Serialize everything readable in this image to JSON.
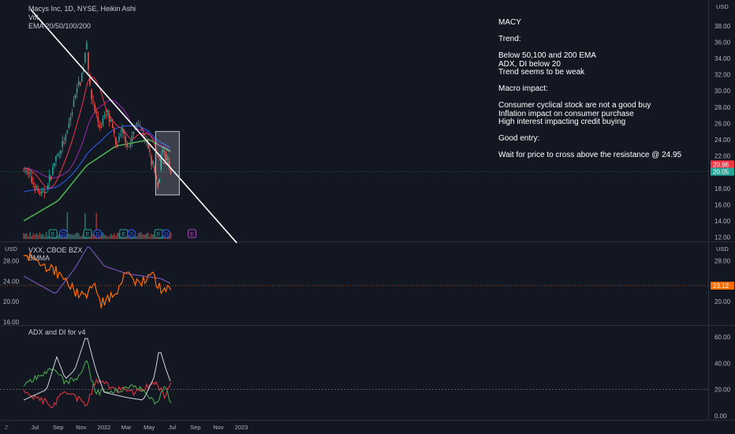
{
  "header": {
    "title": "Macys Inc, 1D, NYSE, Heikin Ashi",
    "vol": "Vol",
    "ema": "EMA 20/50/100/200",
    "vxx_label": "VXX, CBOE BZX",
    "smma_label": "SMMA",
    "adx_label": "ADX and DI for v4"
  },
  "annotation": {
    "ticker": "MACY",
    "trend_title": "Trend:",
    "trend_lines": [
      "Below 50,100 and 200 EMA",
      "ADX, DI below 20",
      "Trend seems to be weak"
    ],
    "macro_title": "Macro impact:",
    "macro_lines": [
      "Consumer cyclical stock are not a good buy",
      "Inflation impact on consumer purchase",
      "High interest impacting credit buying"
    ],
    "entry_title": "Good entry:",
    "entry_line": "Wait for price to cross above the resistance @ 24.95"
  },
  "colors": {
    "background": "#131722",
    "up_candle": "#26a69a",
    "down_candle": "#ef5350",
    "ema20": "#f23645",
    "ema50": "#9c27b0",
    "ema100": "#2962ff",
    "ema200": "#4caf50",
    "trendline": "#ffffff",
    "vxx": "#ff6d00",
    "smma": "#7e57c2",
    "adx": "#d1d4dc",
    "di_plus": "#4caf50",
    "di_minus": "#f23645"
  },
  "chart_data": [
    {
      "type": "candlestick",
      "name": "Macys Inc price",
      "unit": "USD",
      "y_ticks": [
        "38.00",
        "36.00",
        "34.00",
        "32.00",
        "30.00",
        "28.00",
        "26.00",
        "24.00",
        "22.00",
        "20.00",
        "18.00",
        "16.00",
        "14.00",
        "12.00"
      ],
      "ylim": [
        11.5,
        39.5
      ],
      "x_ticks": [
        "Jul",
        "Sep",
        "Nov",
        "2022",
        "Mar",
        "May",
        "Jul",
        "Sep",
        "Nov",
        "2023"
      ],
      "price_path": [
        {
          "date": "2021-06-01",
          "price": 20.5
        },
        {
          "date": "2021-06-20",
          "price": 19.2
        },
        {
          "date": "2021-07-20",
          "price": 17.0
        },
        {
          "date": "2021-08-05",
          "price": 18.5
        },
        {
          "date": "2021-08-25",
          "price": 21.5
        },
        {
          "date": "2021-09-20",
          "price": 24.0
        },
        {
          "date": "2021-10-01",
          "price": 26.0
        },
        {
          "date": "2021-10-20",
          "price": 30.5
        },
        {
          "date": "2021-11-05",
          "price": 32.0
        },
        {
          "date": "2021-11-15",
          "price": 36.5
        },
        {
          "date": "2021-11-25",
          "price": 30.0
        },
        {
          "date": "2021-12-20",
          "price": 25.5
        },
        {
          "date": "2022-01-10",
          "price": 27.5
        },
        {
          "date": "2022-02-01",
          "price": 23.5
        },
        {
          "date": "2022-02-20",
          "price": 25.0
        },
        {
          "date": "2022-03-10",
          "price": 23.0
        },
        {
          "date": "2022-03-30",
          "price": 26.5
        },
        {
          "date": "2022-04-20",
          "price": 24.0
        },
        {
          "date": "2022-05-10",
          "price": 21.0
        },
        {
          "date": "2022-05-25",
          "price": 17.5
        },
        {
          "date": "2022-06-05",
          "price": 23.5
        },
        {
          "date": "2022-06-15",
          "price": 22.0
        },
        {
          "date": "2022-06-28",
          "price": 19.5
        }
      ],
      "ema200_path": [
        {
          "date": "2021-06-01",
          "price": 14.0
        },
        {
          "date": "2021-09-01",
          "price": 16.5
        },
        {
          "date": "2021-11-15",
          "price": 20.8
        },
        {
          "date": "2022-02-01",
          "price": 23.2
        },
        {
          "date": "2022-05-01",
          "price": 24.0
        },
        {
          "date": "2022-06-28",
          "price": 22.5
        }
      ],
      "last_price_labels": [
        {
          "value": "20.96",
          "color": "#f23645"
        },
        {
          "value": "20.05",
          "color": "#26a69a"
        }
      ],
      "resistance_line": {
        "start": {
          "date": "2021-06-20",
          "price": 40.0
        },
        "end": {
          "date": "2022-12-20",
          "price": 11.3
        }
      },
      "highlight_box": {
        "date_start": "2022-05-18",
        "date_end": "2022-07-20",
        "price_top": 25.0,
        "price_bottom": 17.2
      },
      "earnings_markers": [
        {
          "date": "2021-08-18",
          "label": "E"
        },
        {
          "date": "2021-09-15",
          "label": "D"
        },
        {
          "date": "2021-11-18",
          "label": "E"
        },
        {
          "date": "2021-12-15",
          "label": "D"
        },
        {
          "date": "2022-02-22",
          "label": "E"
        },
        {
          "date": "2022-03-15",
          "label": "D"
        },
        {
          "date": "2022-05-26",
          "label": "E"
        },
        {
          "date": "2022-06-15",
          "label": "D"
        },
        {
          "date": "2022-08-23",
          "label": "E"
        }
      ]
    },
    {
      "type": "line",
      "name": "VXX, CBOE BZX",
      "unit": "USD",
      "y_ticks_left": [
        "28.00",
        "24.00",
        "20.00",
        "16.00"
      ],
      "y_ticks_right": [
        "28.00",
        "20.00"
      ],
      "ylim": [
        15.5,
        31.5
      ],
      "last_value_label": "23.12",
      "vxx_path": [
        {
          "date": "2021-06-01",
          "value": 29.5
        },
        {
          "date": "2021-07-15",
          "value": 27.0
        },
        {
          "date": "2021-08-25",
          "value": 26.0
        },
        {
          "date": "2021-09-15",
          "value": 24.0
        },
        {
          "date": "2021-10-15",
          "value": 22.0
        },
        {
          "date": "2021-11-15",
          "value": 21.0
        },
        {
          "date": "2021-12-05",
          "value": 24.5
        },
        {
          "date": "2021-12-25",
          "value": 19.5
        },
        {
          "date": "2022-01-30",
          "value": 21.5
        },
        {
          "date": "2022-03-07",
          "value": 26.0
        },
        {
          "date": "2022-04-01",
          "value": 23.0
        },
        {
          "date": "2022-05-10",
          "value": 25.5
        },
        {
          "date": "2022-06-01",
          "value": 22.0
        },
        {
          "date": "2022-06-28",
          "value": 23.12
        }
      ],
      "smma_path": [
        {
          "date": "2021-06-01",
          "value": 25.0
        },
        {
          "date": "2021-08-25",
          "value": 21.5
        },
        {
          "date": "2021-10-15",
          "value": 26.5
        },
        {
          "date": "2021-11-20",
          "value": 31.0
        },
        {
          "date": "2022-01-01",
          "value": 27.0
        },
        {
          "date": "2022-03-01",
          "value": 25.5
        },
        {
          "date": "2022-04-15",
          "value": 25.0
        },
        {
          "date": "2022-06-01",
          "value": 24.5
        },
        {
          "date": "2022-06-28",
          "value": 23.5
        }
      ]
    },
    {
      "type": "line",
      "name": "ADX and DI for v4",
      "y_ticks": [
        "60.00",
        "40.00",
        "20.00",
        "0.00"
      ],
      "ylim": [
        0,
        68
      ],
      "adx_path": [
        {
          "date": "2021-06-01",
          "value": 12.0
        },
        {
          "date": "2021-08-01",
          "value": 20.0
        },
        {
          "date": "2021-08-28",
          "value": 45.0
        },
        {
          "date": "2021-09-20",
          "value": 28.0
        },
        {
          "date": "2021-10-15",
          "value": 35.0
        },
        {
          "date": "2021-11-15",
          "value": 62.0
        },
        {
          "date": "2021-12-10",
          "value": 35.0
        },
        {
          "date": "2022-01-01",
          "value": 18.0
        },
        {
          "date": "2022-03-01",
          "value": 14.0
        },
        {
          "date": "2022-04-15",
          "value": 12.0
        },
        {
          "date": "2022-05-15",
          "value": 30.0
        },
        {
          "date": "2022-05-28",
          "value": 52.0
        },
        {
          "date": "2022-06-15",
          "value": 35.0
        },
        {
          "date": "2022-06-28",
          "value": 25.0
        }
      ],
      "di_plus_path": [
        {
          "date": "2021-06-01",
          "value": 22.0
        },
        {
          "date": "2021-08-20",
          "value": 38.0
        },
        {
          "date": "2021-09-20",
          "value": 25.0
        },
        {
          "date": "2021-11-01",
          "value": 30.0
        },
        {
          "date": "2021-11-15",
          "value": 42.0
        },
        {
          "date": "2021-12-10",
          "value": 18.0
        },
        {
          "date": "2022-02-01",
          "value": 20.0
        },
        {
          "date": "2022-04-01",
          "value": 22.0
        },
        {
          "date": "2022-05-20",
          "value": 10.0
        },
        {
          "date": "2022-06-10",
          "value": 22.0
        },
        {
          "date": "2022-06-28",
          "value": 12.0
        }
      ],
      "di_minus_path": [
        {
          "date": "2021-06-01",
          "value": 18.0
        },
        {
          "date": "2021-08-20",
          "value": 8.0
        },
        {
          "date": "2021-09-20",
          "value": 20.0
        },
        {
          "date": "2021-11-15",
          "value": 8.0
        },
        {
          "date": "2021-12-10",
          "value": 28.0
        },
        {
          "date": "2022-02-01",
          "value": 20.0
        },
        {
          "date": "2022-04-01",
          "value": 18.0
        },
        {
          "date": "2022-05-20",
          "value": 26.0
        },
        {
          "date": "2022-06-10",
          "value": 15.0
        },
        {
          "date": "2022-06-28",
          "value": 26.0
        }
      ]
    }
  ],
  "axis_icon": "Z"
}
